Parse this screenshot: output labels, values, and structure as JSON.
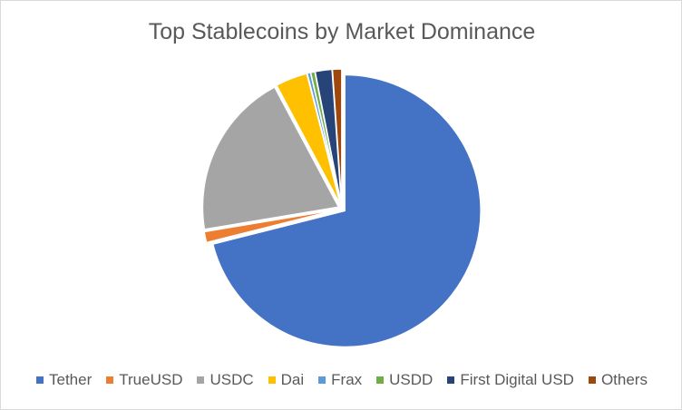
{
  "chart_data": {
    "type": "pie",
    "title": "Top Stablecoins by Market Dominance",
    "legend_position": "bottom",
    "categories": [
      "Tether",
      "TrueUSD",
      "USDC",
      "Dai",
      "Frax",
      "USDD",
      "First Digital USD",
      "Others"
    ],
    "values": [
      71.0,
      1.3,
      19.8,
      3.8,
      0.4,
      0.5,
      2.0,
      1.1
    ],
    "unit": "%",
    "colors": [
      "#4472C4",
      "#ED7D31",
      "#A5A5A5",
      "#FFC000",
      "#5B9BD5",
      "#70AD47",
      "#264478",
      "#9E480E"
    ],
    "exploded": true,
    "start_angle_deg": 0,
    "direction": "clockwise"
  }
}
